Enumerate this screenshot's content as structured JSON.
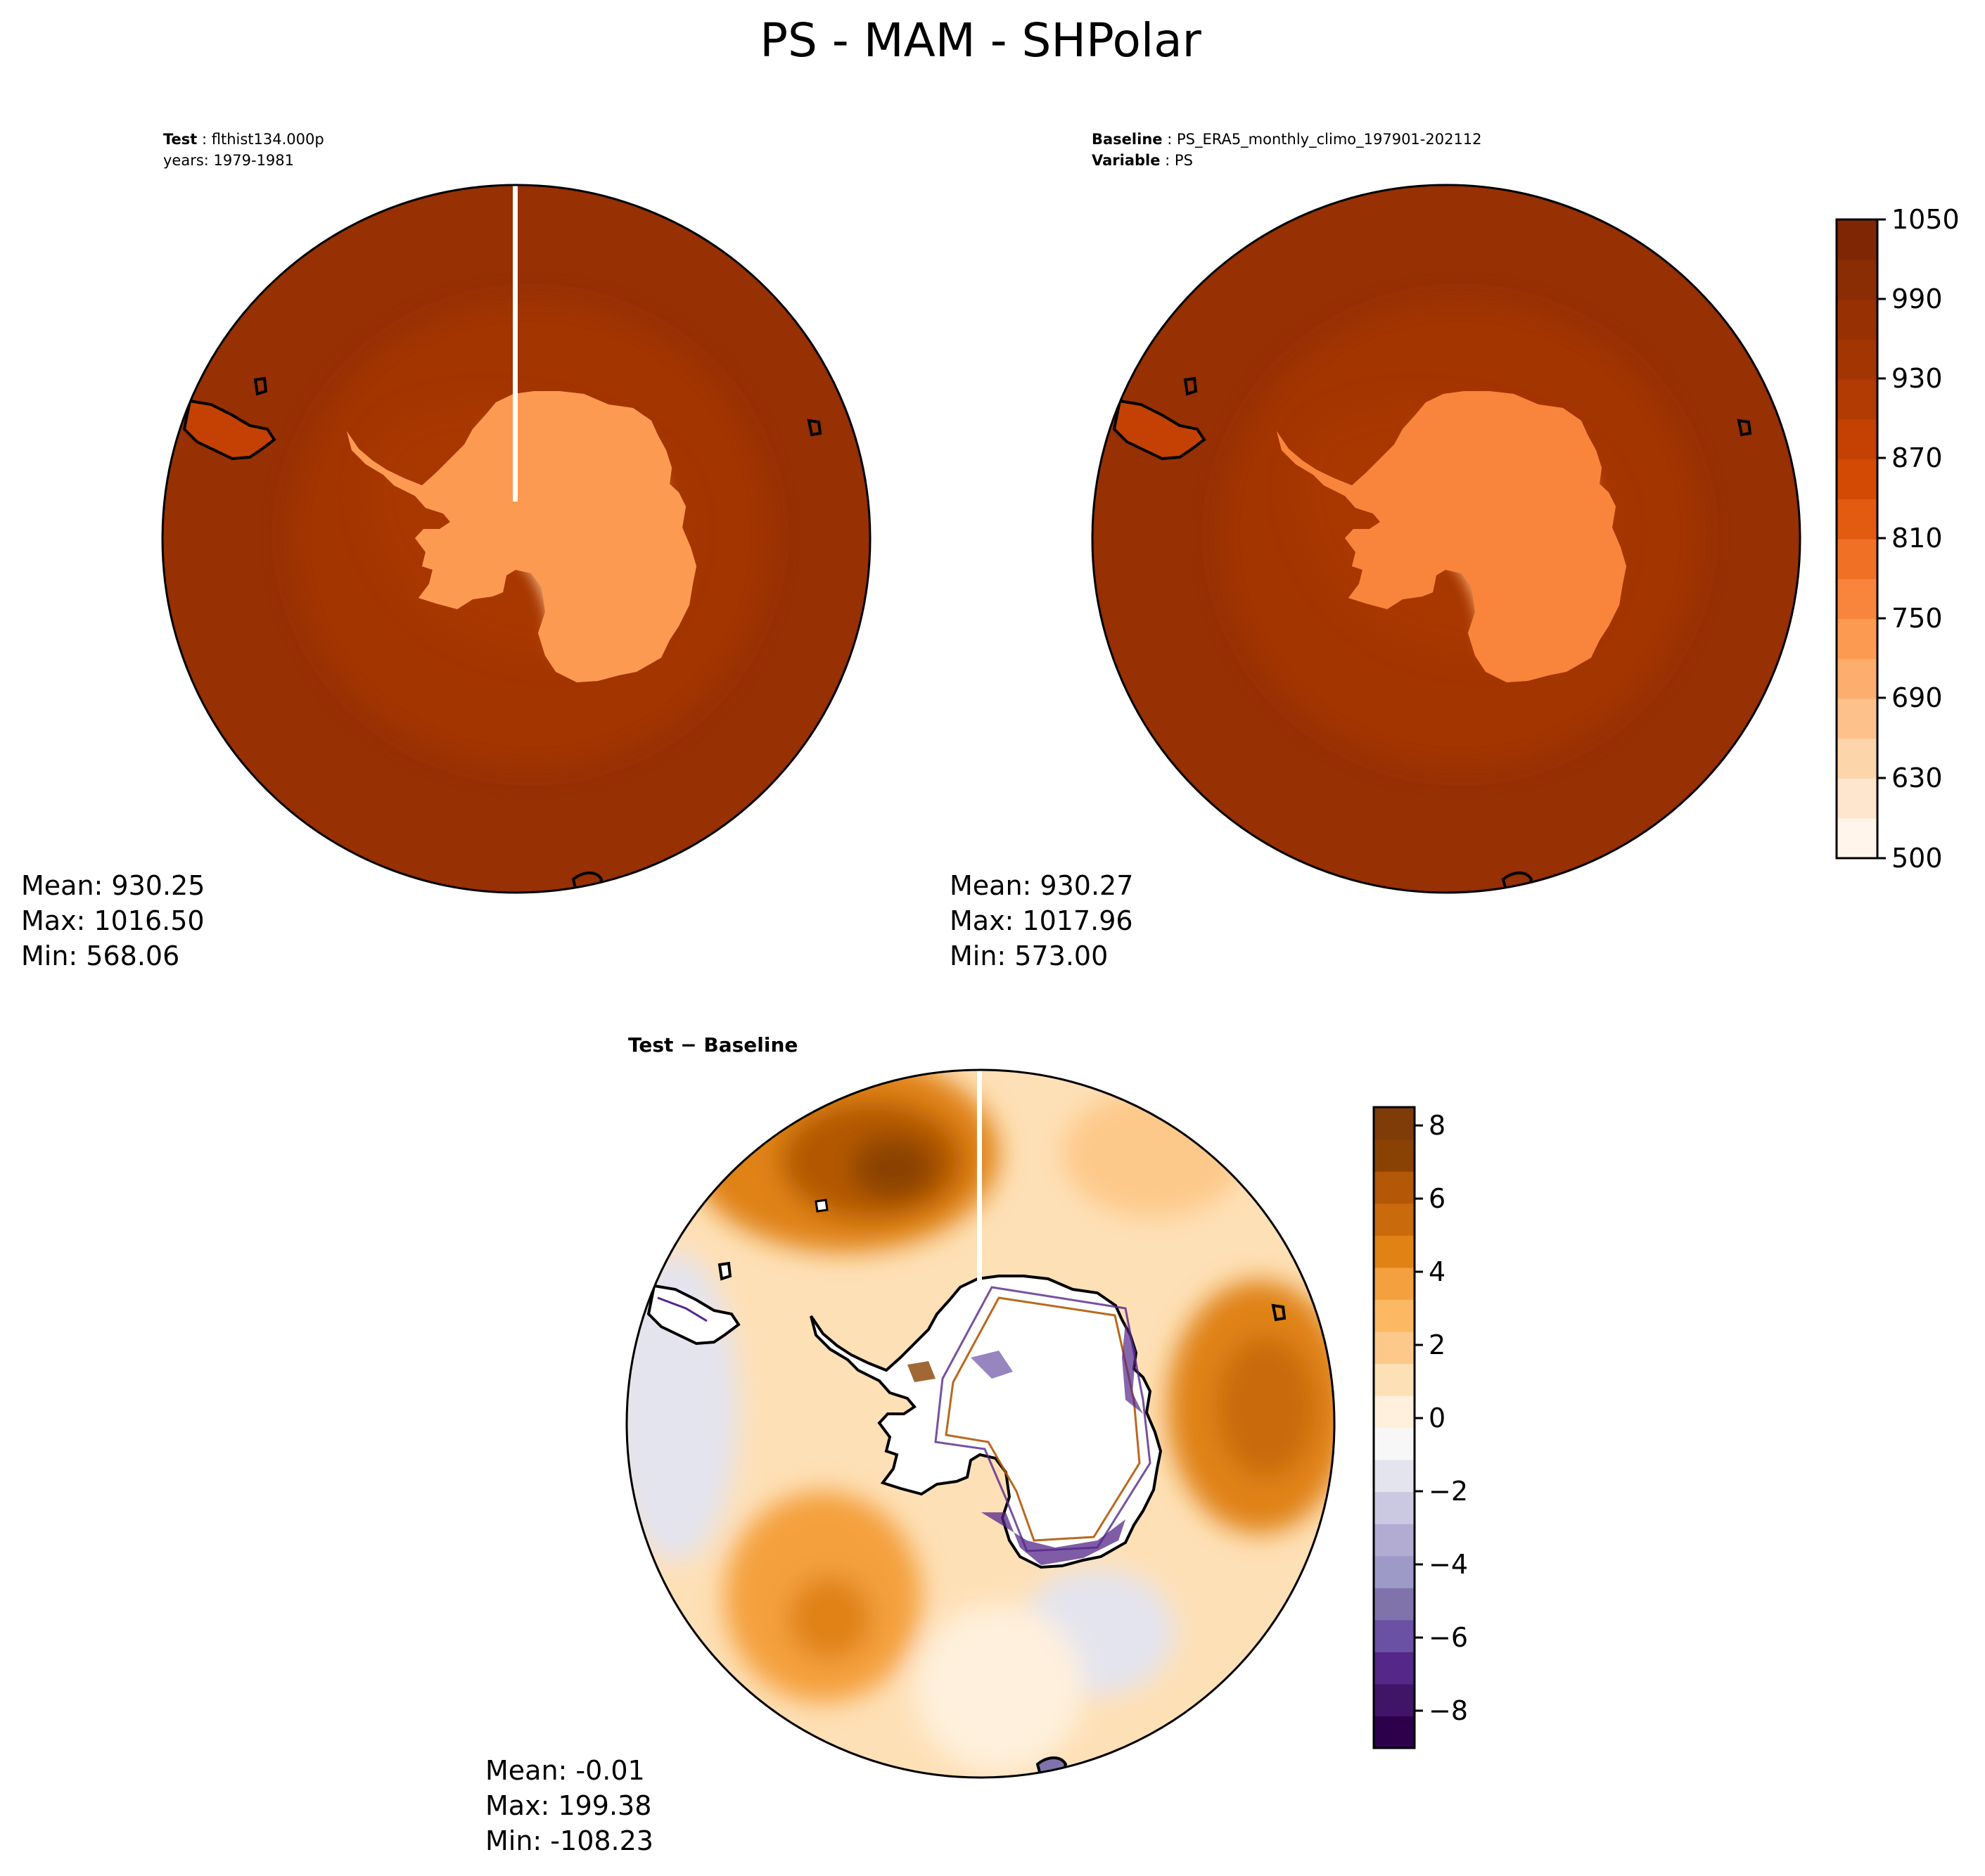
{
  "title": "PS - MAM - SHPolar",
  "panels": [
    {
      "id": "test",
      "head": [
        {
          "bold": "Test",
          "sep": " : ",
          "text": "flthist134.000p"
        },
        {
          "bold": "",
          "sep": "",
          "text": "years: 1979-1981"
        }
      ],
      "stats": [
        "Mean: 930.25",
        "Max: 1016.50",
        "Min: 568.06"
      ],
      "seam": true
    },
    {
      "id": "baseline",
      "head": [
        {
          "bold": "Baseline",
          "sep": " : ",
          "text": "PS_ERA5_monthly_climo_197901-202112"
        },
        {
          "bold": "Variable",
          "sep": " : ",
          "text": "PS"
        }
      ],
      "stats": [
        "Mean: 930.27",
        "Max: 1017.96",
        "Min: 573.00"
      ],
      "seam": false
    },
    {
      "id": "difference",
      "head": [
        {
          "bold": "Test − Baseline",
          "sep": "",
          "text": ""
        }
      ],
      "stats": [
        "Mean: -0.01",
        "Max: 199.38",
        "Min: -108.23"
      ],
      "seam": true
    }
  ],
  "colorbars": [
    {
      "id": "ps",
      "ticks": [
        "1050",
        "990",
        "930",
        "870",
        "810",
        "750",
        "690",
        "630",
        "500"
      ],
      "colors_bottom_to_top": [
        "#fff5eb",
        "#fee6ce",
        "#fdd5ab",
        "#fdc28c",
        "#fdad6e",
        "#fd9a51",
        "#f8853b",
        "#f07026",
        "#e35a11",
        "#d34a05",
        "#c44103",
        "#b23a03",
        "#a33503",
        "#973003",
        "#8a2c04",
        "#7f2704"
      ]
    },
    {
      "id": "diff",
      "ticks": [
        "8",
        "6",
        "4",
        "2",
        "0",
        "−2",
        "−4",
        "−6",
        "−8"
      ],
      "colors_bottom_to_top": [
        "#2d004b",
        "#401568",
        "#542788",
        "#6a51a3",
        "#8073ac",
        "#9e9ac8",
        "#b2abd2",
        "#cbc9e2",
        "#e4e4ef",
        "#f7f7f7",
        "#fef0dc",
        "#fee0b6",
        "#fdc98a",
        "#fdb863",
        "#f4a03e",
        "#e08214",
        "#c96a0c",
        "#b35806",
        "#8a4204",
        "#7f3b08"
      ]
    }
  ],
  "chart_data": [
    {
      "type": "heatmap",
      "title": "Test : flthist134.000p",
      "subtitle": "years: 1979-1981",
      "projection": "South polar stereographic",
      "colormap": "Oranges",
      "colorbar_range": [
        500,
        1050
      ],
      "colorbar_ticks": [
        500,
        630,
        690,
        750,
        810,
        870,
        930,
        990,
        1050
      ],
      "stats": {
        "mean": 930.25,
        "max": 1016.5,
        "min": 568.06
      }
    },
    {
      "type": "heatmap",
      "title": "Baseline : PS_ERA5_monthly_climo_197901-202112",
      "subtitle": "Variable : PS",
      "projection": "South polar stereographic",
      "colormap": "Oranges",
      "colorbar_range": [
        500,
        1050
      ],
      "colorbar_ticks": [
        500,
        630,
        690,
        750,
        810,
        870,
        930,
        990,
        1050
      ],
      "stats": {
        "mean": 930.27,
        "max": 1017.96,
        "min": 573.0
      }
    },
    {
      "type": "heatmap",
      "title": "Test − Baseline",
      "projection": "South polar stereographic",
      "colormap": "PuOr_r",
      "colorbar_range": [
        -9,
        8.5
      ],
      "colorbar_ticks": [
        -8,
        -6,
        -4,
        -2,
        0,
        2,
        4,
        6,
        8
      ],
      "stats": {
        "mean": -0.01,
        "max": 199.38,
        "min": -108.23
      }
    }
  ]
}
